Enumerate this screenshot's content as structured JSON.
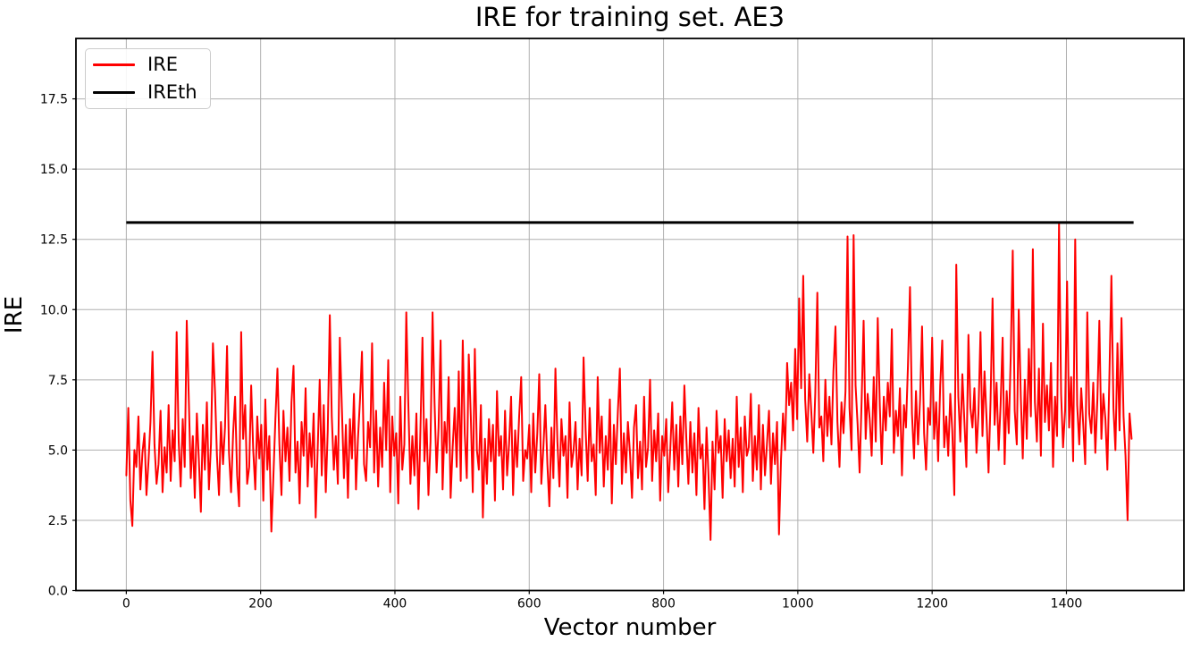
{
  "chart_data": {
    "type": "line",
    "title": "IRE for training set. AE3",
    "xlabel": "Vector number",
    "ylabel": "IRE",
    "xlim": [
      -75,
      1575
    ],
    "ylim": [
      0,
      19.65
    ],
    "grid": true,
    "x_tick_values": [
      0,
      200,
      400,
      600,
      800,
      1000,
      1200,
      1400
    ],
    "x_tick_labels": [
      "0",
      "200",
      "400",
      "600",
      "800",
      "1000",
      "1200",
      "1400"
    ],
    "y_tick_values": [
      0,
      2.5,
      5,
      7.5,
      10,
      12.5,
      15,
      17.5
    ],
    "y_tick_labels": [
      "0.0",
      "2.5",
      "5.0",
      "7.5",
      "10.0",
      "12.5",
      "15.0",
      "17.5"
    ],
    "colors": {
      "grid": "#b0b0b0",
      "axis": "#000000",
      "background": "#ffffff"
    },
    "legend": {
      "position": "upper-left",
      "entries": [
        {
          "label": "IRE",
          "color": "#ff0000"
        },
        {
          "label": "IREth",
          "color": "#000000"
        }
      ]
    },
    "series": [
      {
        "name": "IRE",
        "color": "#ff0000",
        "line_width": 2,
        "x_start": 0,
        "x_step": 3,
        "values": [
          4.1,
          6.5,
          3.2,
          2.3,
          5.0,
          4.4,
          6.2,
          3.6,
          4.9,
          5.6,
          3.4,
          4.6,
          6.0,
          8.5,
          5.2,
          3.8,
          4.5,
          6.4,
          3.5,
          5.1,
          4.2,
          6.6,
          3.9,
          5.7,
          4.6,
          9.2,
          5.3,
          3.7,
          6.1,
          4.4,
          9.6,
          6.8,
          4.0,
          5.5,
          3.3,
          6.3,
          4.7,
          2.8,
          5.9,
          4.3,
          6.7,
          3.6,
          5.2,
          8.8,
          7.1,
          4.8,
          3.4,
          6.0,
          4.5,
          5.8,
          8.7,
          4.9,
          3.5,
          5.6,
          6.9,
          4.1,
          3.0,
          9.2,
          5.4,
          6.6,
          3.8,
          4.4,
          7.3,
          5.0,
          3.6,
          6.2,
          4.7,
          5.9,
          3.2,
          6.8,
          4.3,
          5.5,
          2.1,
          4.0,
          6.1,
          7.9,
          5.2,
          3.4,
          6.4,
          4.6,
          5.8,
          3.9,
          6.7,
          8.0,
          4.2,
          5.3,
          3.1,
          6.0,
          4.8,
          7.2,
          3.7,
          5.6,
          4.4,
          6.3,
          2.6,
          5.0,
          7.5,
          4.1,
          6.6,
          3.5,
          5.7,
          9.8,
          6.2,
          4.3,
          5.5,
          3.8,
          9.0,
          6.5,
          4.0,
          5.9,
          3.3,
          6.1,
          4.7,
          7.0,
          3.6,
          5.4,
          6.8,
          8.5,
          4.5,
          3.9,
          6.0,
          5.1,
          8.8,
          4.2,
          6.4,
          3.7,
          5.8,
          4.4,
          7.4,
          5.0,
          8.2,
          3.5,
          6.2,
          4.8,
          5.6,
          3.1,
          6.9,
          4.3,
          5.2,
          9.9,
          6.6,
          3.8,
          5.5,
          4.1,
          6.3,
          2.9,
          5.7,
          9.0,
          4.6,
          6.1,
          3.4,
          5.3,
          9.9,
          6.7,
          4.2,
          5.8,
          8.9,
          3.6,
          6.0,
          4.9,
          7.6,
          3.3,
          5.1,
          6.5,
          4.4,
          7.8,
          3.9,
          8.9,
          5.6,
          4.0,
          8.4,
          6.2,
          3.5,
          8.6,
          5.0,
          4.3,
          6.6,
          2.6,
          5.4,
          3.8,
          6.1,
          4.6,
          5.9,
          3.2,
          7.1,
          4.8,
          5.5,
          3.6,
          6.4,
          4.1,
          5.2,
          6.9,
          3.4,
          5.7,
          4.4,
          6.2,
          7.6,
          3.9,
          5.0,
          4.7,
          5.9,
          3.5,
          6.3,
          4.2,
          5.6,
          7.7,
          3.8,
          5.1,
          6.6,
          4.5,
          3.0,
          5.8,
          4.0,
          7.9,
          5.3,
          3.7,
          6.1,
          4.8,
          5.5,
          3.3,
          6.7,
          4.4,
          5.0,
          6.0,
          3.6,
          5.4,
          4.1,
          8.3,
          5.7,
          3.9,
          6.5,
          4.6,
          5.2,
          3.4,
          7.6,
          4.9,
          6.2,
          3.7,
          5.5,
          4.3,
          6.8,
          3.1,
          5.9,
          4.5,
          6.4,
          7.9,
          3.8,
          5.6,
          4.2,
          6.0,
          4.9,
          3.3,
          5.8,
          6.6,
          4.0,
          5.3,
          3.6,
          6.9,
          4.4,
          5.1,
          7.5,
          3.9,
          5.7,
          4.6,
          6.3,
          3.2,
          5.5,
          4.8,
          6.1,
          3.5,
          5.0,
          6.7,
          4.3,
          5.9,
          3.7,
          6.2,
          4.5,
          7.3,
          5.4,
          3.8,
          6.0,
          4.2,
          5.6,
          3.4,
          6.5,
          4.7,
          5.2,
          2.9,
          5.8,
          4.1,
          1.8,
          5.3,
          3.6,
          6.4,
          4.9,
          5.5,
          3.3,
          6.1,
          4.6,
          5.7,
          4.0,
          5.4,
          3.7,
          6.9,
          4.4,
          5.8,
          3.5,
          6.2,
          4.8,
          5.1,
          7.0,
          3.9,
          5.5,
          4.3,
          6.6,
          3.6,
          5.9,
          4.1,
          5.2,
          6.4,
          3.8,
          5.6,
          4.5,
          6.0,
          2.0,
          4.7,
          6.3,
          5.0,
          8.1,
          6.6,
          7.4,
          5.7,
          8.6,
          6.1,
          10.4,
          7.2,
          11.2,
          6.8,
          5.3,
          7.7,
          6.4,
          4.9,
          7.0,
          10.6,
          5.8,
          6.2,
          4.6,
          7.5,
          5.5,
          6.9,
          5.2,
          7.8,
          9.4,
          6.0,
          4.4,
          6.7,
          5.6,
          7.1,
          12.6,
          6.5,
          5.0,
          12.65,
          7.3,
          5.9,
          4.2,
          6.8,
          9.6,
          5.4,
          7.0,
          6.1,
          4.8,
          7.6,
          5.3,
          9.7,
          6.6,
          4.5,
          6.9,
          5.7,
          7.4,
          6.2,
          9.3,
          4.9,
          6.4,
          5.5,
          7.2,
          4.1,
          6.6,
          5.8,
          8.0,
          10.8,
          6.3,
          4.7,
          7.1,
          5.2,
          6.8,
          9.4,
          5.6,
          4.3,
          6.5,
          5.9,
          9.0,
          5.4,
          6.7,
          4.6,
          7.3,
          8.9,
          5.1,
          6.2,
          4.8,
          7.0,
          5.7,
          3.4,
          11.6,
          6.9,
          5.3,
          7.7,
          6.0,
          4.4,
          9.1,
          6.5,
          5.8,
          7.2,
          4.9,
          6.3,
          9.2,
          5.5,
          7.8,
          6.1,
          4.2,
          6.8,
          10.4,
          5.9,
          7.4,
          5.0,
          6.6,
          9.0,
          4.5,
          7.1,
          5.6,
          8.3,
          12.1,
          6.4,
          5.2,
          10.0,
          6.9,
          4.7,
          7.5,
          5.4,
          8.6,
          6.2,
          12.15,
          6.7,
          5.3,
          7.9,
          4.8,
          9.5,
          6.0,
          7.3,
          5.7,
          8.1,
          4.4,
          6.9,
          5.5,
          13.05,
          7.0,
          5.1,
          6.4,
          11.0,
          5.8,
          7.6,
          4.6,
          12.5,
          6.6,
          5.2,
          7.2,
          5.9,
          4.5,
          9.9,
          6.3,
          5.6,
          7.4,
          4.9,
          6.8,
          9.6,
          5.4,
          7.0,
          6.1,
          4.3,
          7.7,
          11.2,
          6.5,
          5.0,
          8.8,
          5.7,
          9.7,
          6.2,
          4.8,
          2.5,
          6.3,
          5.4
        ]
      },
      {
        "name": "IREth",
        "type": "hline",
        "color": "#000000",
        "line_width": 3,
        "value": 13.1,
        "x_range": [
          0,
          1500
        ]
      }
    ]
  }
}
